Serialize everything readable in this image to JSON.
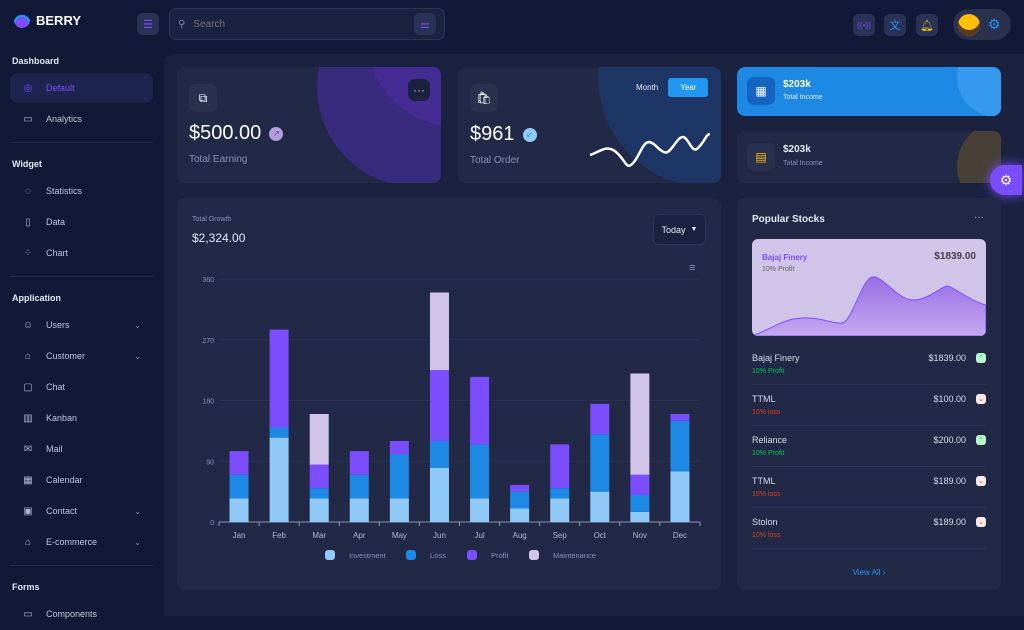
{
  "app": {
    "name": "BERRY"
  },
  "header": {
    "search_placeholder": "Search",
    "icons": [
      "menu-icon",
      "filter-icon",
      "live-icon",
      "translate-icon",
      "bell-icon",
      "avatar",
      "gear-icon"
    ]
  },
  "sidebar": {
    "sections": [
      {
        "title": "Dashboard",
        "items": [
          {
            "label": "Default",
            "icon": "dashboard-icon",
            "active": true
          },
          {
            "label": "Analytics",
            "icon": "device-analytics-icon"
          }
        ]
      },
      {
        "title": "Widget",
        "items": [
          {
            "label": "Statistics",
            "icon": "chart-arcs-icon"
          },
          {
            "label": "Data",
            "icon": "clipboard-list-icon"
          },
          {
            "label": "Chart",
            "icon": "chart-dots-icon"
          }
        ]
      },
      {
        "title": "Application",
        "items": [
          {
            "label": "Users",
            "icon": "user-check-icon",
            "chevron": true
          },
          {
            "label": "Customer",
            "icon": "basket-icon",
            "chevron": true
          },
          {
            "label": "Chat",
            "icon": "messages-icon"
          },
          {
            "label": "Kanban",
            "icon": "layout-kanban-icon"
          },
          {
            "label": "Mail",
            "icon": "mail-icon"
          },
          {
            "label": "Calendar",
            "icon": "calendar-icon"
          },
          {
            "label": "Contact",
            "icon": "nfc-icon",
            "chevron": true
          },
          {
            "label": "E-commerce",
            "icon": "basket-icon",
            "chevron": true
          }
        ]
      },
      {
        "title": "Forms",
        "items": [
          {
            "label": "Components",
            "icon": "forms-icon"
          }
        ]
      }
    ]
  },
  "earning": {
    "value": "$500.00",
    "label": "Total Earning"
  },
  "order": {
    "value": "$961",
    "label": "Total Order",
    "toggle": [
      "Month",
      "Year"
    ],
    "active_toggle": "Year"
  },
  "income1": {
    "value": "$203k",
    "label": "Total Income"
  },
  "income2": {
    "value": "$203k",
    "label": "Total Income"
  },
  "growth": {
    "label": "Total Growth",
    "value": "$2,324.00",
    "period": "Today"
  },
  "chart_data": {
    "type": "bar",
    "stacked": true,
    "categories": [
      "Jan",
      "Feb",
      "Mar",
      "Apr",
      "May",
      "Jun",
      "Jul",
      "Aug",
      "Sep",
      "Oct",
      "Nov",
      "Dec"
    ],
    "series": [
      {
        "name": "Investment",
        "color": "#90caf9",
        "values": [
          35,
          125,
          35,
          35,
          35,
          80,
          35,
          20,
          35,
          45,
          15,
          75
        ]
      },
      {
        "name": "Loss",
        "color": "#1e88e5",
        "values": [
          35,
          15,
          15,
          35,
          65,
          40,
          80,
          25,
          15,
          85,
          25,
          75
        ]
      },
      {
        "name": "Profit",
        "color": "#7c4dff",
        "values": [
          35,
          145,
          35,
          35,
          20,
          105,
          100,
          10,
          65,
          45,
          30,
          10
        ]
      },
      {
        "name": "Maintenance",
        "color": "#d1c4e9",
        "values": [
          0,
          0,
          75,
          0,
          0,
          115,
          0,
          0,
          0,
          0,
          150,
          0
        ]
      }
    ],
    "yticks": [
      0,
      90,
      180,
      270,
      360
    ],
    "ylim": [
      0,
      360
    ],
    "grid": true,
    "legend": "bottom"
  },
  "stocks": {
    "title": "Popular Stocks",
    "featured": {
      "name": "Bajaj Finery",
      "price": "$1839.00",
      "change": "10% Profit"
    },
    "items": [
      {
        "name": "Bajaj Finery",
        "price": "$1839.00",
        "change": "10% Profit",
        "trend": "up"
      },
      {
        "name": "TTML",
        "price": "$100.00",
        "change": "10% loss",
        "trend": "down"
      },
      {
        "name": "Reliance",
        "price": "$200.00",
        "change": "10% Profit",
        "trend": "up"
      },
      {
        "name": "TTML",
        "price": "$189.00",
        "change": "10% loss",
        "trend": "down"
      },
      {
        "name": "Stolon",
        "price": "$189.00",
        "change": "10% loss",
        "trend": "down"
      }
    ],
    "view_all": "View All"
  },
  "colors": {
    "primary": "#7c4dff",
    "secondary": "#2196f3",
    "profit": "#00c853",
    "loss": "#d84315"
  }
}
